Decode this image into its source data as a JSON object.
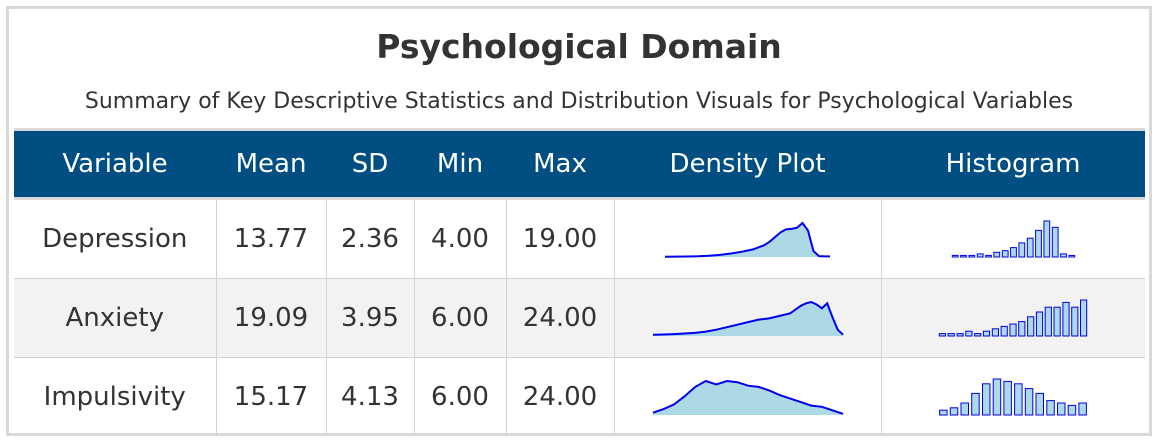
{
  "title": "Psychological Domain",
  "subtitle": "Summary of Key Descriptive Statistics and Distribution Visuals for Psychological Variables",
  "colors": {
    "header_bg": "#004e82",
    "header_text": "#ffffff",
    "line": "#0000ee",
    "density_fill": "#add8e6",
    "bar_fill": "#add8e6",
    "row_alt": "#f2f2f2"
  },
  "columns": [
    "Variable",
    "Mean",
    "SD",
    "Min",
    "Max",
    "Density Plot",
    "Histogram"
  ],
  "rows": [
    {
      "variable": "Depression",
      "mean": "13.77",
      "sd": "2.36",
      "min": "4.00",
      "max": "19.00",
      "density": {
        "x": [
          4,
          5,
          6,
          7,
          8,
          9,
          10,
          11,
          12,
          13,
          13.5,
          14,
          14.5,
          15,
          15.5,
          16,
          16.5,
          17,
          17.5,
          18,
          18.5,
          19
        ],
        "y": [
          0.005,
          0.006,
          0.008,
          0.012,
          0.02,
          0.035,
          0.06,
          0.09,
          0.13,
          0.2,
          0.26,
          0.34,
          0.42,
          0.47,
          0.48,
          0.5,
          0.58,
          0.45,
          0.1,
          0.015,
          0.01,
          0.01
        ]
      },
      "histogram": [
        1,
        1,
        1,
        2,
        1,
        3,
        4,
        6,
        9,
        12,
        17,
        23,
        19,
        2,
        1
      ]
    },
    {
      "variable": "Anxiety",
      "mean": "19.09",
      "sd": "3.95",
      "min": "6.00",
      "max": "24.00",
      "density": {
        "x": [
          6,
          7,
          8,
          9,
          10,
          11,
          12,
          13,
          14,
          15,
          16,
          17,
          18,
          19,
          19.5,
          20,
          20.5,
          21,
          21.5,
          22,
          22.5,
          23,
          23.5,
          24
        ],
        "y": [
          0.01,
          0.012,
          0.015,
          0.02,
          0.025,
          0.035,
          0.05,
          0.07,
          0.09,
          0.11,
          0.13,
          0.14,
          0.16,
          0.18,
          0.21,
          0.24,
          0.26,
          0.27,
          0.25,
          0.22,
          0.26,
          0.15,
          0.05,
          0.01
        ]
      },
      "histogram": [
        1,
        1,
        1,
        2,
        1,
        2,
        3,
        4,
        5,
        6,
        8,
        10,
        12,
        12,
        14,
        12,
        15
      ]
    },
    {
      "variable": "Impulsivity",
      "mean": "15.17",
      "sd": "4.13",
      "min": "6.00",
      "max": "24.00",
      "density": {
        "x": [
          6,
          7,
          8,
          9,
          10,
          11,
          12,
          13,
          14,
          15,
          16,
          17,
          18,
          19,
          20,
          21,
          22,
          23,
          24
        ],
        "y": [
          0.01,
          0.025,
          0.045,
          0.08,
          0.12,
          0.145,
          0.13,
          0.145,
          0.14,
          0.125,
          0.12,
          0.105,
          0.085,
          0.07,
          0.055,
          0.04,
          0.035,
          0.02,
          0.005
        ]
      },
      "histogram": [
        2,
        3,
        5,
        9,
        13,
        15,
        14,
        13,
        11,
        9,
        6,
        5,
        4,
        5
      ]
    }
  ]
}
